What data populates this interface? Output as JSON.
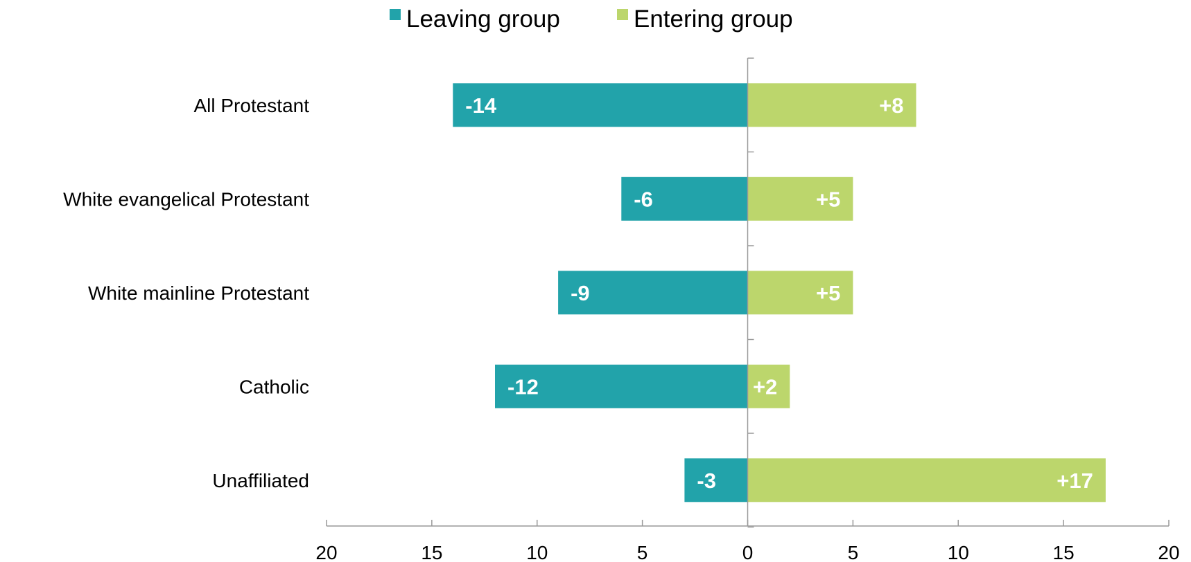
{
  "chart_data": {
    "type": "bar",
    "orientation": "horizontal",
    "stacking": "diverging",
    "categories": [
      "All Protestant",
      "White evangelical Protestant",
      "White mainline Protestant",
      "Catholic",
      "Unaffiliated"
    ],
    "series": [
      {
        "name": "Leaving group",
        "color": "#22a3aa",
        "values": [
          -14,
          -6,
          -9,
          -12,
          -3
        ],
        "labels": [
          "-14",
          "-6",
          "-9",
          "-12",
          "-3"
        ]
      },
      {
        "name": "Entering group",
        "color": "#bcd66c",
        "values": [
          8,
          5,
          5,
          2,
          17
        ],
        "labels": [
          "+8",
          "+5",
          "+5",
          "+2",
          "+17"
        ]
      }
    ],
    "xlim": [
      -20,
      20
    ],
    "xticks": [
      -20,
      -15,
      -10,
      -5,
      0,
      5,
      10,
      15,
      20
    ],
    "xtick_labels": [
      "20",
      "15",
      "10",
      "5",
      "0",
      "5",
      "10",
      "15",
      "20"
    ],
    "legend_position": "top",
    "grid": false
  }
}
